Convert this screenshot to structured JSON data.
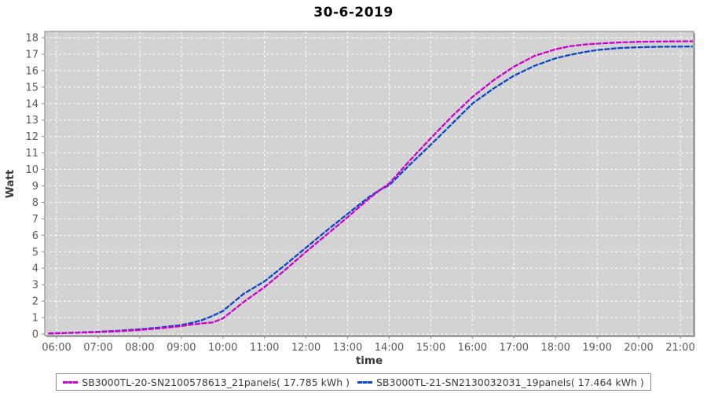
{
  "title": "30-6-2019",
  "colors": {
    "plot_background": "#d3d3d3",
    "plot_shadow": "#a8a8a8",
    "grid": "#ffffff",
    "plot_border": "#7f7f7f",
    "tick_mark": "#8c8c8c",
    "tick_text": "#5a5a5a",
    "axis_label_text": "#3a3a3a",
    "title_text": "#000000",
    "series1": "#cc00cc",
    "series2": "#0c45c8"
  },
  "y_axis": {
    "label": "Watt"
  },
  "x_axis": {
    "label": "time"
  },
  "chart_data": {
    "type": "line",
    "title": "30-6-2019",
    "xlabel": "time",
    "ylabel": "Watt",
    "grid": true,
    "legend_position": "bottom",
    "ylim": [
      0,
      18.4
    ],
    "xlim_hours": [
      5.78,
      21.32
    ],
    "y_ticks": [
      0,
      1,
      2,
      3,
      4,
      5,
      6,
      7,
      8,
      9,
      10,
      11,
      12,
      13,
      14,
      15,
      16,
      17,
      18
    ],
    "x_tick_hours": [
      6,
      7,
      8,
      9,
      10,
      11,
      12,
      13,
      14,
      15,
      16,
      17,
      18,
      19,
      20,
      21
    ],
    "x_tick_labels": [
      "06:00",
      "07:00",
      "08:00",
      "09:00",
      "10:00",
      "11:00",
      "12:00",
      "13:00",
      "14:00",
      "15:00",
      "16:00",
      "17:00",
      "18:00",
      "19:00",
      "20:00",
      "21:00"
    ],
    "x_hours": [
      5.8,
      6.0,
      6.5,
      7.0,
      7.5,
      8.0,
      8.5,
      9.0,
      9.25,
      9.5,
      9.75,
      10.0,
      10.5,
      11.0,
      11.5,
      12.0,
      12.5,
      13.0,
      13.5,
      13.75,
      14.0,
      14.5,
      15.0,
      15.5,
      16.0,
      16.5,
      17.0,
      17.5,
      18.0,
      18.33,
      18.67,
      19.0,
      19.5,
      20.0,
      20.5,
      21.0,
      21.3
    ],
    "series": [
      {
        "name": "SB3000TL-20-SN2100578613_21panels( 17.785 kWh )",
        "color": "#cc00cc",
        "total_kwh": 17.785,
        "values": [
          0.04,
          0.05,
          0.08,
          0.12,
          0.17,
          0.25,
          0.35,
          0.48,
          0.58,
          0.65,
          0.7,
          0.95,
          1.95,
          2.85,
          3.9,
          5.0,
          6.05,
          7.1,
          8.2,
          8.7,
          9.15,
          10.55,
          11.9,
          13.2,
          14.4,
          15.4,
          16.25,
          16.9,
          17.3,
          17.48,
          17.58,
          17.64,
          17.71,
          17.75,
          17.77,
          17.78,
          17.785
        ]
      },
      {
        "name": "SB3000TL-21-SN2130032031_19panels( 17.464 kWh )",
        "color": "#0c45c8",
        "total_kwh": 17.464,
        "values": [
          0.04,
          0.05,
          0.09,
          0.14,
          0.2,
          0.29,
          0.4,
          0.55,
          0.68,
          0.85,
          1.1,
          1.4,
          2.45,
          3.2,
          4.2,
          5.25,
          6.3,
          7.3,
          8.3,
          8.72,
          9.05,
          10.3,
          11.5,
          12.75,
          14.0,
          14.9,
          15.7,
          16.3,
          16.75,
          16.95,
          17.12,
          17.25,
          17.37,
          17.42,
          17.45,
          17.46,
          17.464
        ]
      }
    ]
  }
}
